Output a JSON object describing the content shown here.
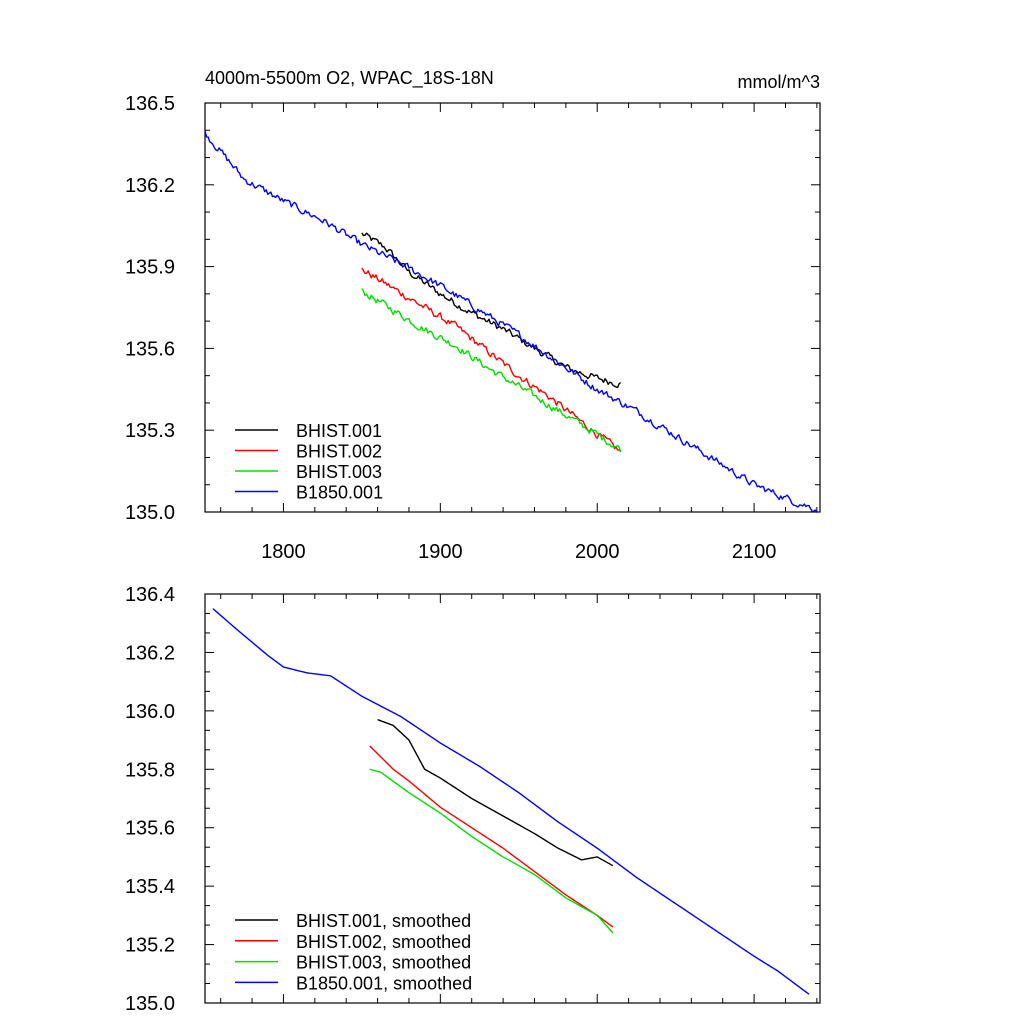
{
  "colors": {
    "BHIST.001": "#000000",
    "BHIST.002": "#ff0000",
    "BHIST.003": "#00e000",
    "B1850.001": "#0000ff"
  },
  "chart_data": [
    {
      "type": "line",
      "title": "4000m-5500m O2, WPAC_18S-18N",
      "units": "mmol/m^3",
      "xlim": [
        1750,
        2142
      ],
      "ylim": [
        135.0,
        136.5
      ],
      "xticks": [
        "1800",
        "1900",
        "2000",
        "2100"
      ],
      "yticks": [
        "135.0",
        "135.3",
        "135.6",
        "135.9",
        "136.2",
        "136.5"
      ],
      "legend_position": "bottom-left",
      "series": [
        {
          "name": "BHIST.001",
          "color": "#000000",
          "noise": 0.012,
          "x": [
            1850,
            1865,
            1880,
            1900,
            1920,
            1940,
            1960,
            1980,
            2000,
            2015
          ],
          "y": [
            136.02,
            135.97,
            135.88,
            135.8,
            135.73,
            135.67,
            135.6,
            135.53,
            135.49,
            135.47
          ]
        },
        {
          "name": "BHIST.002",
          "color": "#ff0000",
          "noise": 0.012,
          "x": [
            1850,
            1870,
            1890,
            1910,
            1930,
            1950,
            1970,
            1990,
            2015
          ],
          "y": [
            135.89,
            135.82,
            135.75,
            135.68,
            135.59,
            135.5,
            135.42,
            135.33,
            135.22
          ]
        },
        {
          "name": "BHIST.003",
          "color": "#00e000",
          "noise": 0.012,
          "x": [
            1850,
            1870,
            1890,
            1910,
            1930,
            1950,
            1970,
            1990,
            2015
          ],
          "y": [
            135.81,
            135.74,
            135.67,
            135.61,
            135.53,
            135.46,
            135.39,
            135.32,
            135.23
          ]
        },
        {
          "name": "B1850.001",
          "color": "#0000ff",
          "noise": 0.012,
          "x": [
            1750,
            1775,
            1800,
            1825,
            1850,
            1875,
            1900,
            1925,
            1950,
            1975,
            2000,
            2025,
            2050,
            2075,
            2100,
            2125,
            2140
          ],
          "y": [
            136.39,
            136.22,
            136.14,
            136.07,
            135.98,
            135.91,
            135.83,
            135.74,
            135.65,
            135.55,
            135.45,
            135.37,
            135.28,
            135.19,
            135.1,
            135.04,
            135.01
          ]
        }
      ]
    },
    {
      "type": "line",
      "xlim": [
        1750,
        2142
      ],
      "ylim": [
        135.0,
        136.4
      ],
      "yticks": [
        "135.0",
        "135.2",
        "135.4",
        "135.6",
        "135.8",
        "136.0",
        "136.2",
        "136.4"
      ],
      "legend_position": "bottom-left",
      "series": [
        {
          "name": "BHIST.001, smoothed",
          "color": "#000000",
          "noise": 0,
          "x": [
            1860,
            1870,
            1880,
            1890,
            1900,
            1920,
            1940,
            1960,
            1975,
            1990,
            2000,
            2010
          ],
          "y": [
            135.97,
            135.95,
            135.9,
            135.8,
            135.77,
            135.7,
            135.64,
            135.58,
            135.53,
            135.49,
            135.5,
            135.47
          ]
        },
        {
          "name": "BHIST.002, smoothed",
          "color": "#ff0000",
          "noise": 0,
          "x": [
            1855,
            1870,
            1880,
            1900,
            1920,
            1940,
            1960,
            1980,
            2000,
            2010
          ],
          "y": [
            135.88,
            135.8,
            135.76,
            135.67,
            135.6,
            135.53,
            135.45,
            135.37,
            135.3,
            135.26
          ]
        },
        {
          "name": "BHIST.003, smoothed",
          "color": "#00e000",
          "noise": 0,
          "x": [
            1855,
            1862,
            1880,
            1900,
            1920,
            1940,
            1960,
            1980,
            2000,
            2010
          ],
          "y": [
            135.8,
            135.79,
            135.72,
            135.65,
            135.57,
            135.5,
            135.44,
            135.36,
            135.3,
            135.24
          ]
        },
        {
          "name": "B1850.001, smoothed",
          "color": "#0000ff",
          "noise": 0,
          "x": [
            1755,
            1770,
            1790,
            1800,
            1815,
            1830,
            1850,
            1875,
            1900,
            1925,
            1950,
            1975,
            2000,
            2025,
            2050,
            2075,
            2100,
            2115,
            2135
          ],
          "y": [
            136.35,
            136.28,
            136.19,
            136.15,
            136.13,
            136.12,
            136.05,
            135.98,
            135.89,
            135.81,
            135.72,
            135.62,
            135.53,
            135.43,
            135.34,
            135.25,
            135.16,
            135.11,
            135.03
          ]
        }
      ]
    }
  ]
}
